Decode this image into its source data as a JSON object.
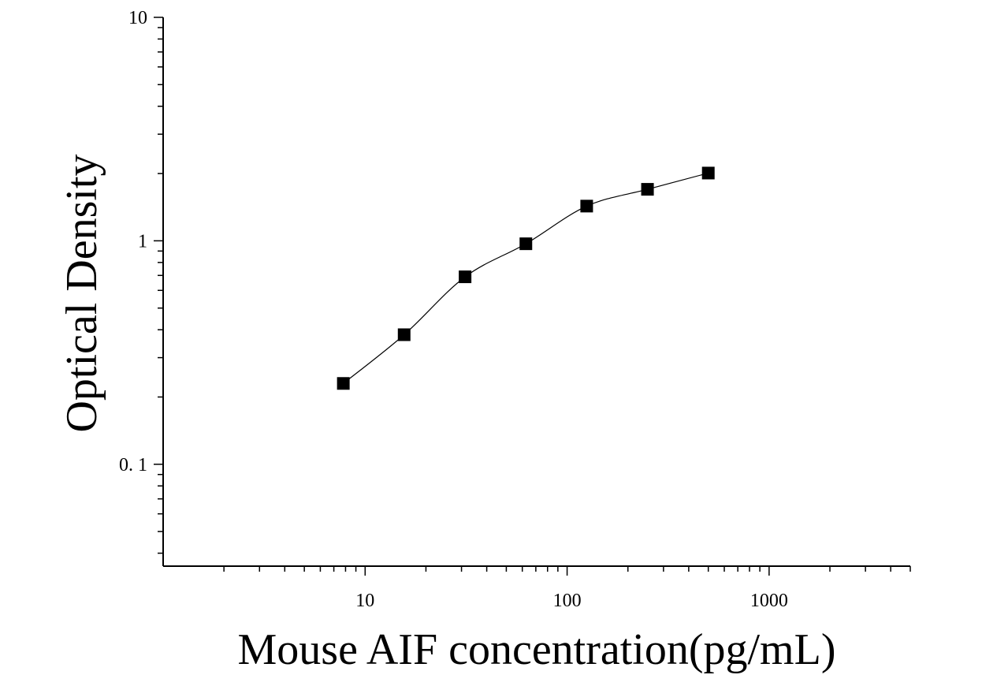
{
  "chart_data": {
    "type": "scatter",
    "xlabel": "Mouse AIF concentration(pg/mL)",
    "ylabel": "Optical Density",
    "x_scale": "log",
    "y_scale": "log",
    "xlim": [
      1,
      5000
    ],
    "ylim": [
      0.035,
      10
    ],
    "x_ticks": [
      {
        "value": 10,
        "label": "10"
      },
      {
        "value": 100,
        "label": "100"
      },
      {
        "value": 1000,
        "label": "1000"
      }
    ],
    "y_ticks": [
      {
        "value": 0.1,
        "label": "0. 1"
      },
      {
        "value": 1,
        "label": "1"
      },
      {
        "value": 10,
        "label": "10"
      }
    ],
    "grid": false,
    "series": [
      {
        "marker": "square",
        "color": "#000000",
        "fit_curve": true,
        "points": [
          {
            "x": 7.8,
            "y": 0.23
          },
          {
            "x": 15.6,
            "y": 0.38
          },
          {
            "x": 31.25,
            "y": 0.69
          },
          {
            "x": 62.5,
            "y": 0.97
          },
          {
            "x": 125,
            "y": 1.43
          },
          {
            "x": 250,
            "y": 1.7
          },
          {
            "x": 500,
            "y": 2.01
          }
        ]
      }
    ]
  }
}
